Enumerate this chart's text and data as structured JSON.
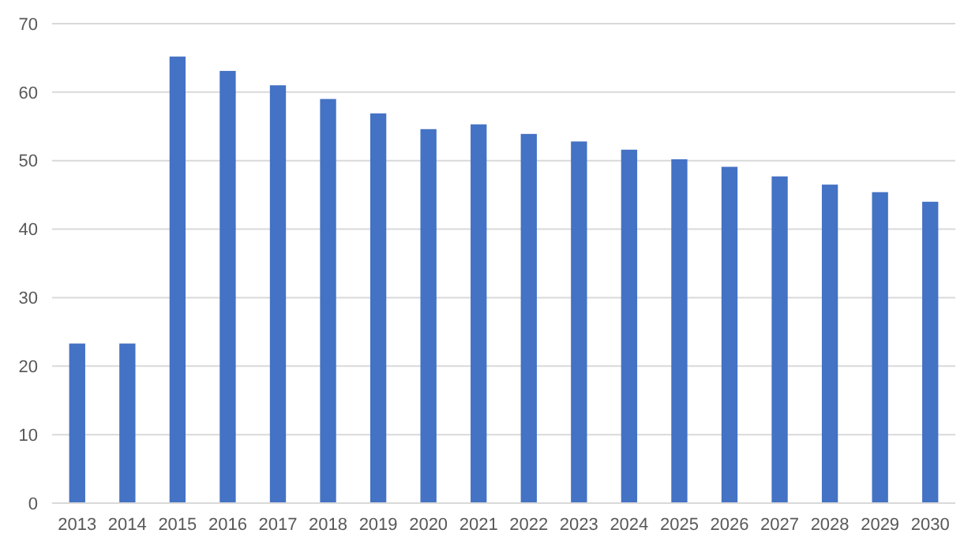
{
  "chart_data": {
    "type": "bar",
    "categories": [
      "2013",
      "2014",
      "2015",
      "2016",
      "2017",
      "2018",
      "2019",
      "2020",
      "2021",
      "2022",
      "2023",
      "2024",
      "2025",
      "2026",
      "2027",
      "2028",
      "2029",
      "2030"
    ],
    "values": [
      23.3,
      23.3,
      65.2,
      63.1,
      61.0,
      59.0,
      56.9,
      54.6,
      55.3,
      53.9,
      52.8,
      51.6,
      50.2,
      49.1,
      47.7,
      46.5,
      45.4,
      44.0
    ],
    "color": "#4472c4",
    "ylim": [
      0,
      70
    ],
    "yticks": [
      0,
      10,
      20,
      30,
      40,
      50,
      60,
      70
    ],
    "grid": "y"
  }
}
